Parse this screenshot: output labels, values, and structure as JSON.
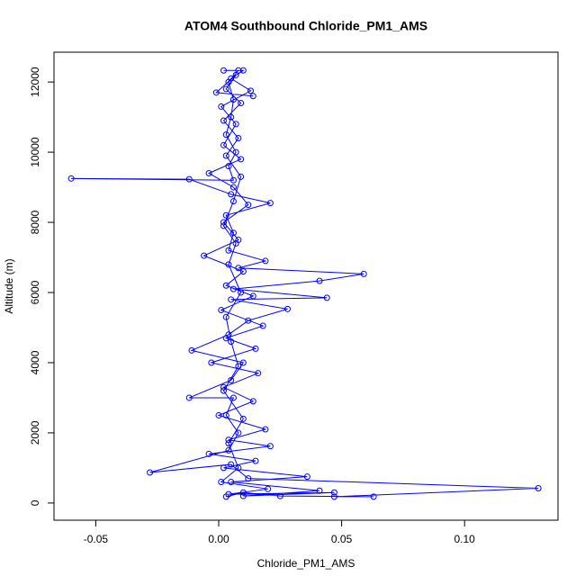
{
  "chart_data": {
    "type": "line",
    "title": "ATOM4 Southbound Chloride_PM1_AMS",
    "x_label": "Chloride_PM1_AMS",
    "y_label": "Altitude (m)",
    "color": "#0000ff",
    "marker": "o",
    "grid": false,
    "x": [
      0.003,
      0.01,
      0.025,
      0.063,
      0.047,
      0.13,
      0.012,
      0.005,
      -0.028,
      0.004,
      0.008,
      0.003,
      0.006,
      -0.012,
      0.005,
      0.01,
      -0.011,
      0.004,
      0.012,
      0.028,
      0.005,
      0.044,
      0.006,
      0.041,
      0.059,
      0.008,
      0.019,
      0.004,
      0.006,
      0.003,
      0.021,
      0.005,
      -0.012,
      -0.06,
      0.006,
      0.004,
      0.007,
      0.003,
      0.005,
      0.006,
      0.004,
      0.008,
      0.002,
      0.01,
      0.005,
      0.013,
      0.001,
      0.007,
      0.002,
      0.009,
      -0.004,
      0.006,
      0.012,
      0.002,
      0.008,
      -0.006,
      0.01,
      0.003,
      0.014,
      0.001,
      0.018,
      0.003,
      0.015,
      -0.003,
      0.016,
      0.002,
      0.014,
      0.0,
      0.019,
      0.004,
      0.021,
      -0.004,
      0.015,
      0.002,
      0.036,
      0.005,
      0.041,
      0.01,
      0.047,
      0.004,
      0.02,
      0.001,
      0.008,
      0.004,
      0.01,
      0.002,
      0.008,
      0.005,
      0.003,
      0.009,
      0.004,
      0.007,
      0.002,
      0.006,
      0.009,
      0.003,
      0.008,
      0.002,
      0.009,
      0.003,
      0.007,
      -0.001,
      0.014
    ],
    "values": [
      180,
      300,
      200,
      180,
      180,
      420,
      700,
      1100,
      870,
      1500,
      2000,
      2500,
      3000,
      3000,
      3500,
      4000,
      4350,
      4800,
      5200,
      5530,
      5800,
      5850,
      6100,
      6330,
      6530,
      6700,
      6900,
      7200,
      7700,
      8200,
      8550,
      8800,
      9230,
      9250,
      9200,
      9600,
      10000,
      10500,
      11000,
      11500,
      12000,
      12330,
      12330,
      12330,
      12100,
      11750,
      11300,
      10800,
      10200,
      9800,
      9400,
      9000,
      8500,
      8000,
      7500,
      7050,
      6600,
      6200,
      5900,
      5500,
      5050,
      4700,
      4400,
      4000,
      3700,
      3300,
      2900,
      2500,
      2100,
      1800,
      1620,
      1400,
      1200,
      1000,
      750,
      600,
      350,
      200,
      300,
      250,
      400,
      600,
      1000,
      1700,
      2400,
      3200,
      3900,
      4600,
      5300,
      6000,
      6800,
      7400,
      7900,
      8600,
      9300,
      9900,
      10400,
      10900,
      11400,
      11800,
      12200,
      11700,
      11600
    ],
    "xlim": [
      -0.067,
      0.138
    ],
    "xticks": [
      -0.05,
      {
        "value": 0,
        "label": "0.00"
      },
      0.05,
      {
        "value": 0.1,
        "label": "0.10"
      }
    ],
    "ylim": [
      -490,
      12850
    ],
    "yticks": [
      0,
      2000,
      4000,
      6000,
      8000,
      10000,
      12000
    ]
  }
}
